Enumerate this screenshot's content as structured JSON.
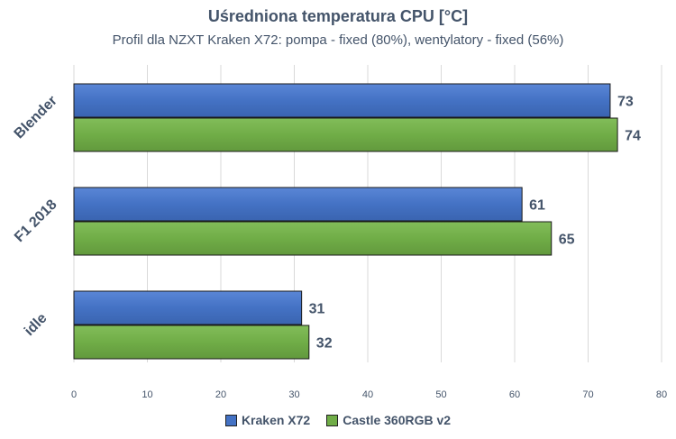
{
  "chart_data": {
    "type": "bar",
    "orientation": "horizontal",
    "title": "Uśredniona temperatura CPU [°C]",
    "subtitle": "Profil dla NZXT Kraken X72: pompa - fixed (80%), wentylatory - fixed (56%)",
    "categories": [
      "Blender",
      "F1 2018",
      "idle"
    ],
    "series": [
      {
        "name": "Kraken X72",
        "values": [
          73,
          61,
          31
        ],
        "color": "#4472c4"
      },
      {
        "name": "Castle 360RGB v2",
        "values": [
          74,
          65,
          32
        ],
        "color": "#70ad47"
      }
    ],
    "xlim": [
      0,
      80
    ],
    "xticks": [
      0,
      10,
      20,
      30,
      40,
      50,
      60,
      70,
      80
    ],
    "grid": true,
    "legend_position": "bottom"
  }
}
